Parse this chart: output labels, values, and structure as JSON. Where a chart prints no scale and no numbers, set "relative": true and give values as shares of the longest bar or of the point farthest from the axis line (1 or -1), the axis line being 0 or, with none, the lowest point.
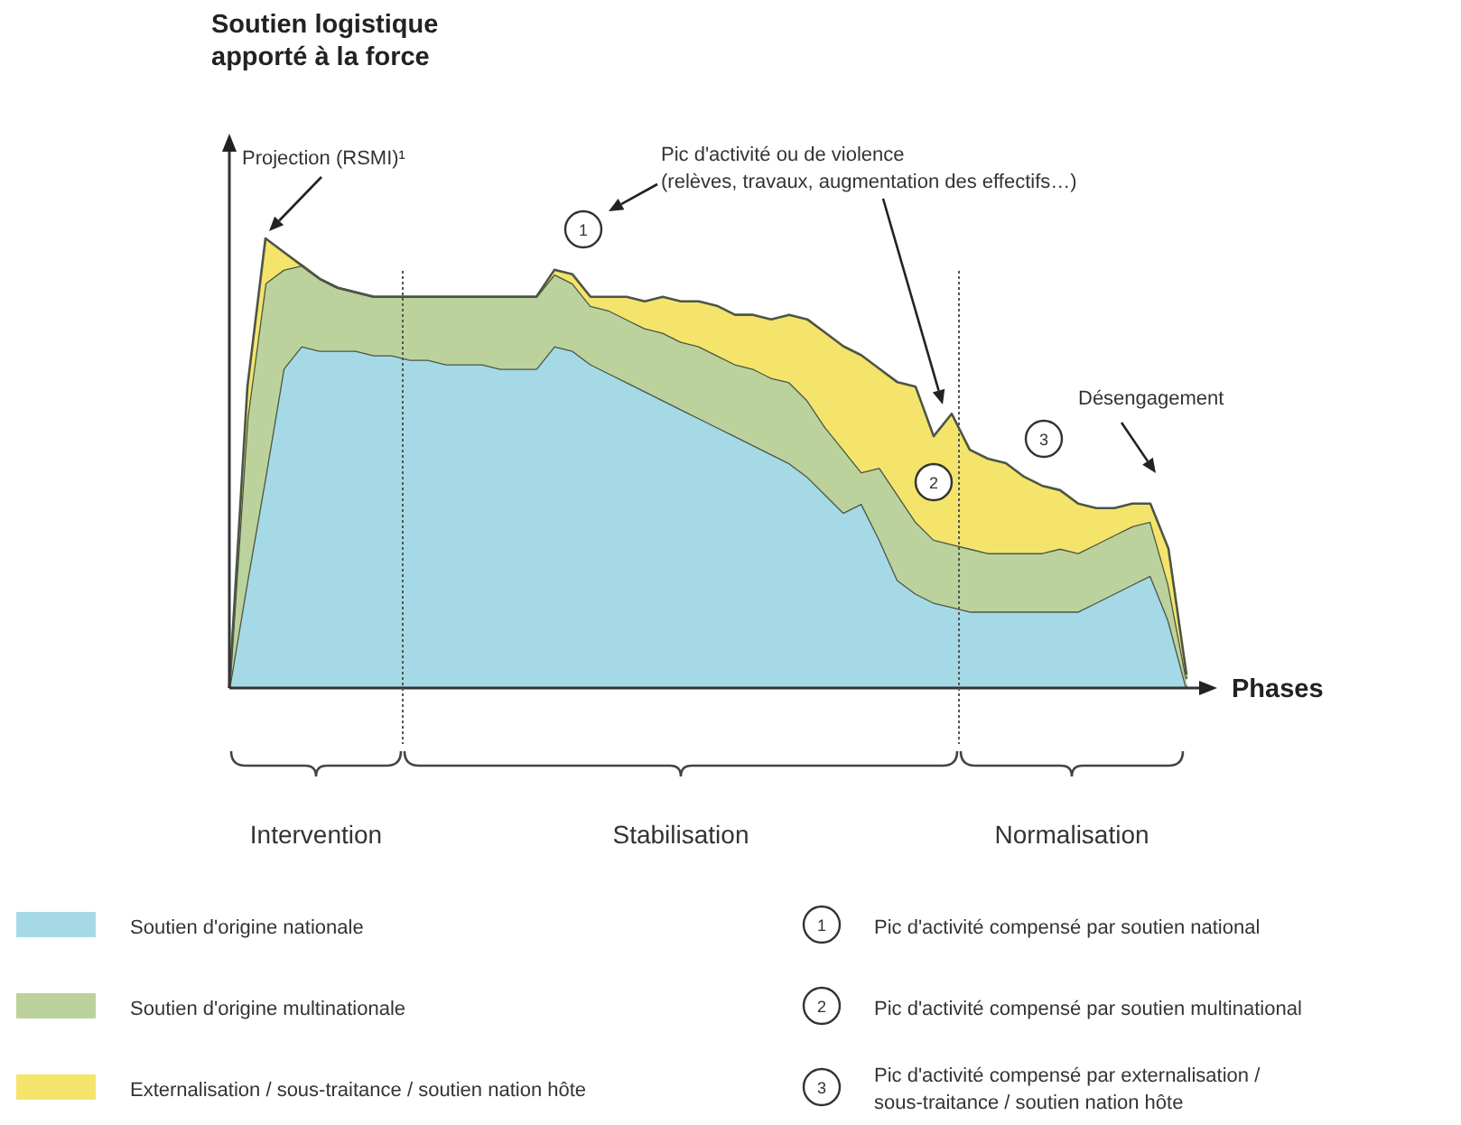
{
  "chart_data": {
    "type": "area",
    "stacked": true,
    "relative": true,
    "xlabel": "Phases",
    "legend": "bottom",
    "categories": [
      null,
      null,
      null,
      null,
      null,
      null,
      null,
      null,
      null,
      null,
      null,
      null,
      null,
      null,
      null,
      null,
      null,
      null,
      null,
      null,
      null,
      null,
      null,
      null,
      null,
      null,
      null,
      null,
      null,
      null,
      null,
      null,
      null,
      null,
      null,
      null,
      null,
      null,
      null,
      null,
      null,
      null,
      null,
      null,
      null,
      null,
      null,
      null,
      null,
      null,
      null,
      null,
      null,
      null
    ],
    "series": [
      {
        "name": "Soutien d'origine nationale",
        "color": "#a6d9e6",
        "values": [
          0,
          0.24,
          0.47,
          0.71,
          0.76,
          0.75,
          0.75,
          0.75,
          0.74,
          0.74,
          0.73,
          0.73,
          0.72,
          0.72,
          0.72,
          0.71,
          0.71,
          0.71,
          0.76,
          0.75,
          0.72,
          0.7,
          0.68,
          0.66,
          0.64,
          0.62,
          0.6,
          0.58,
          0.56,
          0.54,
          0.52,
          0.5,
          0.47,
          0.43,
          0.39,
          0.41,
          0.33,
          0.24,
          0.21,
          0.19,
          0.18,
          0.17,
          0.17,
          0.17,
          0.17,
          0.17,
          0.17,
          0.17,
          0.19,
          0.21,
          0.23,
          0.25,
          0.15,
          0
        ]
      },
      {
        "name": "Soutien d'origine multinationale",
        "color": "#bcd29c",
        "values": [
          0,
          0.36,
          0.43,
          0.22,
          0.18,
          0.16,
          0.14,
          0.13,
          0.13,
          0.13,
          0.14,
          0.14,
          0.15,
          0.15,
          0.15,
          0.16,
          0.16,
          0.16,
          0.16,
          0.15,
          0.13,
          0.14,
          0.14,
          0.14,
          0.15,
          0.15,
          0.16,
          0.16,
          0.16,
          0.17,
          0.17,
          0.18,
          0.17,
          0.15,
          0.14,
          0.07,
          0.16,
          0.19,
          0.16,
          0.14,
          0.14,
          0.14,
          0.13,
          0.13,
          0.13,
          0.13,
          0.14,
          0.13,
          0.13,
          0.13,
          0.13,
          0.12,
          0.08,
          0.02
        ]
      },
      {
        "name": "Externalisation / sous-traitance / soutien nation hôte",
        "color": "#f4e46c",
        "values": [
          0,
          0.07,
          0.1,
          0.04,
          0,
          0,
          0,
          0,
          0,
          0,
          0,
          0,
          0,
          0,
          0,
          0,
          0,
          0,
          0.01,
          0.02,
          0.02,
          0.03,
          0.05,
          0.06,
          0.08,
          0.09,
          0.1,
          0.11,
          0.11,
          0.12,
          0.13,
          0.15,
          0.18,
          0.21,
          0.23,
          0.26,
          0.22,
          0.25,
          0.3,
          0.23,
          0.29,
          0.22,
          0.21,
          0.2,
          0.17,
          0.15,
          0.13,
          0.11,
          0.08,
          0.06,
          0.05,
          0.04,
          0.08,
          0.01
        ]
      }
    ],
    "annotations": [
      "Soutien logistique\napporté à la force",
      "Projection (RSMI)¹",
      "Pic d'activité ou de violence\n(relèves, travaux, augmentation des effectifs…)",
      "Désengagement",
      "1",
      "2",
      "3",
      "Intervention",
      "Stabilisation",
      "Normalisation",
      "Pic d'activité compensé par soutien national",
      "Pic d'activité compensé par soutien multinational",
      "Pic d'activité compensé par externalisation /\nsous-traitance  / soutien nation hôte"
    ]
  }
}
